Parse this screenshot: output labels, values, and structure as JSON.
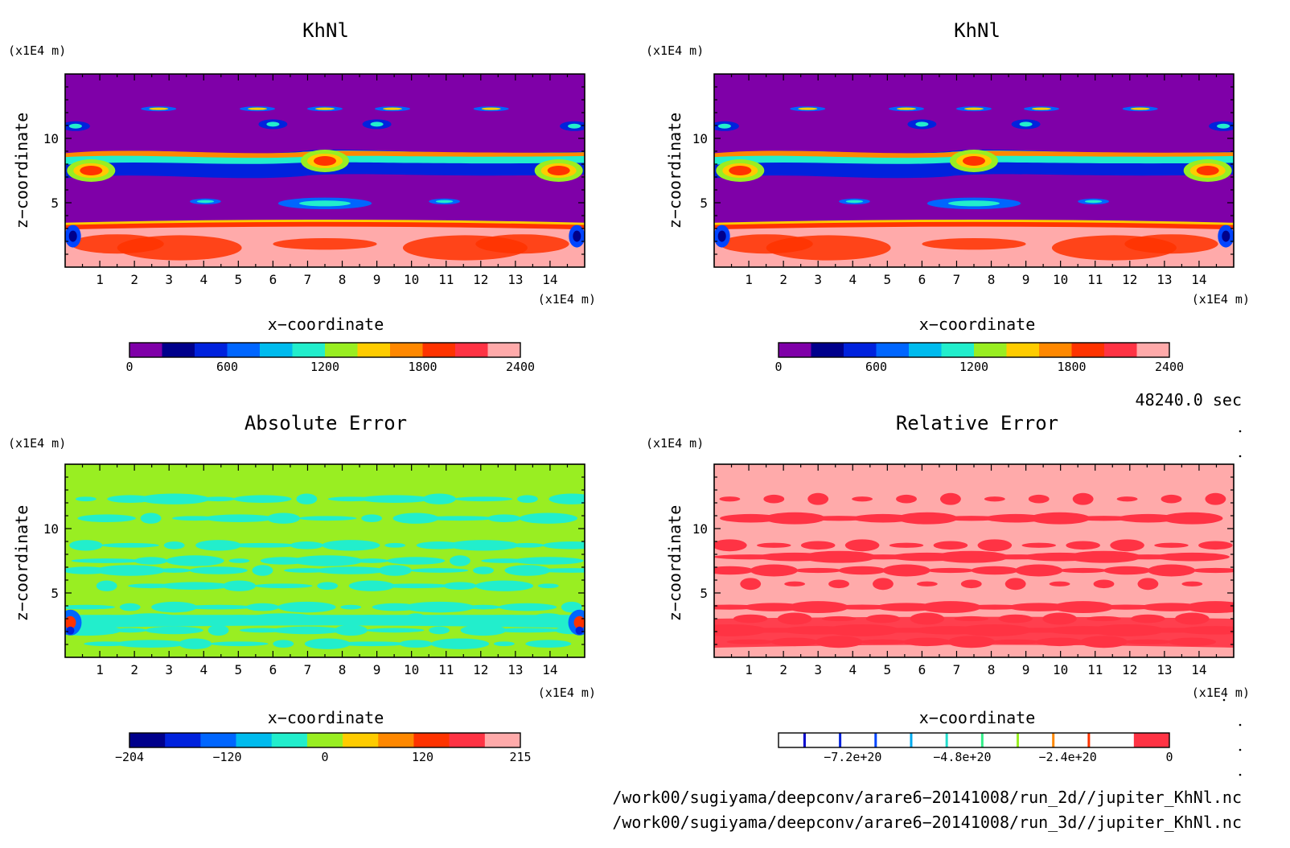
{
  "panels": [
    {
      "title": "KhNl",
      "field": "khnl",
      "x_unit": "(x1E4 m)",
      "z_unit": "(x1E4 m)",
      "xlabel": "x−coordinate",
      "zlabel": "z−coordinate",
      "x_ticks": [
        "1",
        "2",
        "3",
        "4",
        "5",
        "6",
        "7",
        "8",
        "9",
        "10",
        "11",
        "12",
        "13",
        "14"
      ],
      "z_ticks": [
        "5",
        "10"
      ],
      "colorbar": {
        "colors": [
          "#7f00a8",
          "#00008b",
          "#0022dd",
          "#0066ff",
          "#00bbee",
          "#22eecc",
          "#99ee22",
          "#ffcc00",
          "#ff8800",
          "#ff3300",
          "#ff3344",
          "#ffaaaa"
        ],
        "labels": [
          "0",
          "600",
          "1200",
          "1800",
          "2400"
        ]
      }
    },
    {
      "title": "KhNl",
      "field": "khnl",
      "x_unit": "(x1E4 m)",
      "z_unit": "(x1E4 m)",
      "xlabel": "x−coordinate",
      "zlabel": "z−coordinate",
      "x_ticks": [
        "1",
        "2",
        "3",
        "4",
        "5",
        "6",
        "7",
        "8",
        "9",
        "10",
        "11",
        "12",
        "13",
        "14"
      ],
      "z_ticks": [
        "5",
        "10"
      ],
      "colorbar": {
        "colors": [
          "#7f00a8",
          "#00008b",
          "#0022dd",
          "#0066ff",
          "#00bbee",
          "#22eecc",
          "#99ee22",
          "#ffcc00",
          "#ff8800",
          "#ff3300",
          "#ff3344",
          "#ffaaaa"
        ],
        "labels": [
          "0",
          "600",
          "1200",
          "1800",
          "2400"
        ]
      }
    },
    {
      "title": "Absolute Error",
      "field": "abs",
      "x_unit": "(x1E4 m)",
      "z_unit": "(x1E4 m)",
      "xlabel": "x−coordinate",
      "zlabel": "z−coordinate",
      "x_ticks": [
        "1",
        "2",
        "3",
        "4",
        "5",
        "6",
        "7",
        "8",
        "9",
        "10",
        "11",
        "12",
        "13",
        "14"
      ],
      "z_ticks": [
        "5",
        "10"
      ],
      "colorbar": {
        "colors": [
          "#00008b",
          "#0022dd",
          "#0066ff",
          "#00bbee",
          "#22eecc",
          "#99ee22",
          "#ffcc00",
          "#ff8800",
          "#ff3300",
          "#ff3344",
          "#ffaaaa"
        ],
        "labels": [
          "−204",
          "−120",
          "0",
          "120",
          "215"
        ]
      }
    },
    {
      "title": "Relative Error",
      "field": "rel",
      "x_unit": "(x1E4 m)",
      "z_unit": "(x1E4 m)",
      "xlabel": "x−coordinate",
      "zlabel": "z−coordinate",
      "x_ticks": [
        "1",
        "2",
        "3",
        "4",
        "5",
        "6",
        "7",
        "8",
        "9",
        "10",
        "11",
        "12",
        "13",
        "14"
      ],
      "z_ticks": [
        "5",
        "10"
      ],
      "colorbar": {
        "colors": [
          "#ffffff",
          "#ffffff",
          "#ffffff",
          "#ffffff",
          "#ffffff",
          "#ffffff",
          "#ffffff",
          "#ffffff",
          "#ffffff",
          "#ffffff",
          "#ff3344"
        ],
        "labels": [
          "−7.2e+20",
          "−4.8e+20",
          "−2.4e+20",
          "0"
        ],
        "marker_colors": [
          "#0000cc",
          "#0022dd",
          "#0044ff",
          "#00aaee",
          "#22ddcc",
          "#33ee88",
          "#99ee22",
          "#ff8800",
          "#ff3300"
        ]
      }
    }
  ],
  "time_label": "48240.0 sec",
  "file_paths": [
    "/work00/sugiyama/deepconv/arare6−20141008/run_2d//jupiter_KhNl.nc",
    "/work00/sugiyama/deepconv/arare6−20141008/run_3d//jupiter_KhNl.nc"
  ],
  "chart_data": [
    {
      "type": "heatmap",
      "title": "KhNl",
      "xlabel": "x−coordinate",
      "ylabel": "z−coordinate",
      "x_unit": "(x1E4 m)",
      "y_unit": "(x1E4 m)",
      "xlim": [
        0,
        15
      ],
      "ylim": [
        0,
        15
      ],
      "x_ticks": [
        1,
        2,
        3,
        4,
        5,
        6,
        7,
        8,
        9,
        10,
        11,
        12,
        13,
        14
      ],
      "y_ticks": [
        5,
        10
      ],
      "levels": [
        0,
        200,
        400,
        600,
        800,
        1000,
        1200,
        1400,
        1600,
        1800,
        2000,
        2200,
        2400
      ],
      "colorbar_labels": [
        0,
        600,
        1200,
        1800,
        2400
      ]
    },
    {
      "type": "heatmap",
      "title": "KhNl",
      "xlabel": "x−coordinate",
      "ylabel": "z−coordinate",
      "x_unit": "(x1E4 m)",
      "y_unit": "(x1E4 m)",
      "xlim": [
        0,
        15
      ],
      "ylim": [
        0,
        15
      ],
      "x_ticks": [
        1,
        2,
        3,
        4,
        5,
        6,
        7,
        8,
        9,
        10,
        11,
        12,
        13,
        14
      ],
      "y_ticks": [
        5,
        10
      ],
      "levels": [
        0,
        200,
        400,
        600,
        800,
        1000,
        1200,
        1400,
        1600,
        1800,
        2000,
        2200,
        2400
      ],
      "colorbar_labels": [
        0,
        600,
        1200,
        1800,
        2400
      ]
    },
    {
      "type": "heatmap",
      "title": "Absolute Error",
      "xlabel": "x−coordinate",
      "ylabel": "z−coordinate",
      "x_unit": "(x1E4 m)",
      "y_unit": "(x1E4 m)",
      "xlim": [
        0,
        15
      ],
      "ylim": [
        0,
        15
      ],
      "x_ticks": [
        1,
        2,
        3,
        4,
        5,
        6,
        7,
        8,
        9,
        10,
        11,
        12,
        13,
        14
      ],
      "y_ticks": [
        5,
        10
      ],
      "range": [
        -204,
        215
      ],
      "colorbar_labels": [
        -204,
        -120,
        0,
        120,
        215
      ]
    },
    {
      "type": "heatmap",
      "title": "Relative Error",
      "xlabel": "x−coordinate",
      "ylabel": "z−coordinate",
      "x_unit": "(x1E4 m)",
      "y_unit": "(x1E4 m)",
      "xlim": [
        0,
        15
      ],
      "ylim": [
        0,
        15
      ],
      "x_ticks": [
        1,
        2,
        3,
        4,
        5,
        6,
        7,
        8,
        9,
        10,
        11,
        12,
        13,
        14
      ],
      "y_ticks": [
        5,
        10
      ],
      "colorbar_labels": [
        "-7.2e+20",
        "-4.8e+20",
        "-2.4e+20",
        "0"
      ]
    }
  ]
}
